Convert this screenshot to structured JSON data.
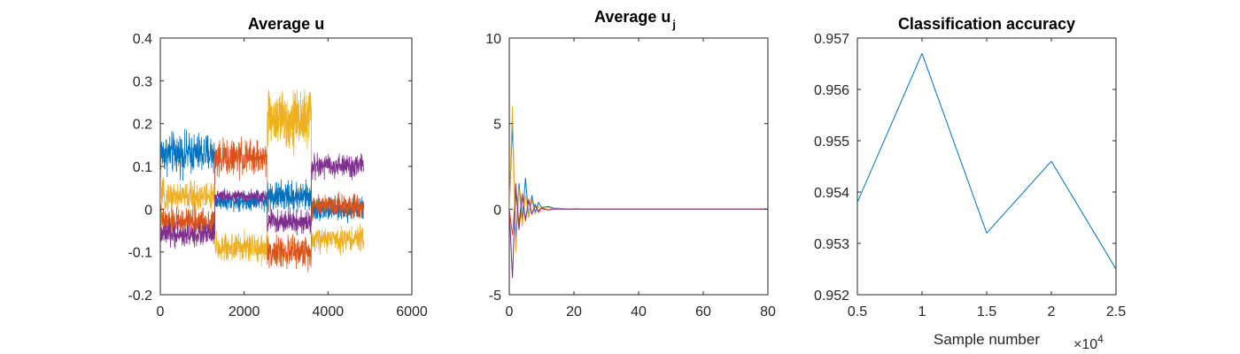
{
  "chart_data": [
    {
      "type": "line",
      "title_main": "Average u",
      "title_sub": "",
      "xlim": [
        0,
        6000
      ],
      "ylim": [
        -0.2,
        0.4
      ],
      "xticks": [
        "0",
        "2000",
        "4000",
        "6000"
      ],
      "yticks": [
        "-0.2",
        "-0.1",
        "0",
        "0.1",
        "0.2",
        "0.3",
        "0.4"
      ],
      "xlabel": "",
      "ylabel": "",
      "grid": false,
      "series": [
        {
          "color": "#0072BD",
          "segments": [
            {
              "x": [
                0,
                1300
              ],
              "mean": 0.13,
              "amp": 0.07
            },
            {
              "x": [
                1300,
                2550
              ],
              "mean": 0.02,
              "amp": 0.03
            },
            {
              "x": [
                2550,
                3600
              ],
              "mean": 0.03,
              "amp": 0.05
            },
            {
              "x": [
                3600,
                4850
              ],
              "mean": 0.0,
              "amp": 0.04
            }
          ]
        },
        {
          "color": "#D95319",
          "segments": [
            {
              "x": [
                0,
                1300
              ],
              "mean": -0.03,
              "amp": 0.05
            },
            {
              "x": [
                1300,
                2550
              ],
              "mean": 0.12,
              "amp": 0.06
            },
            {
              "x": [
                2550,
                3600
              ],
              "mean": -0.1,
              "amp": 0.05
            },
            {
              "x": [
                3600,
                4850
              ],
              "mean": 0.01,
              "amp": 0.04
            }
          ]
        },
        {
          "color": "#EDB120",
          "segments": [
            {
              "x": [
                0,
                1300
              ],
              "mean": 0.03,
              "amp": 0.05
            },
            {
              "x": [
                1300,
                2550
              ],
              "mean": -0.09,
              "amp": 0.05
            },
            {
              "x": [
                2550,
                3600
              ],
              "mean": 0.21,
              "amp": 0.1
            },
            {
              "x": [
                3600,
                4850
              ],
              "mean": -0.07,
              "amp": 0.04
            }
          ]
        },
        {
          "color": "#7E2F8E",
          "segments": [
            {
              "x": [
                0,
                1300
              ],
              "mean": -0.06,
              "amp": 0.04
            },
            {
              "x": [
                1300,
                2550
              ],
              "mean": 0.03,
              "amp": 0.02
            },
            {
              "x": [
                2550,
                3600
              ],
              "mean": -0.03,
              "amp": 0.04
            },
            {
              "x": [
                3600,
                4850
              ],
              "mean": 0.1,
              "amp": 0.04
            }
          ]
        }
      ]
    },
    {
      "type": "line",
      "title_main": "Average u",
      "title_sub": "j",
      "xlim": [
        0,
        80
      ],
      "ylim": [
        -5,
        10
      ],
      "xticks": [
        "0",
        "20",
        "40",
        "60",
        "80"
      ],
      "yticks": [
        "-5",
        "0",
        "5",
        "10"
      ],
      "xlabel": "",
      "ylabel": "",
      "grid": false,
      "series": [
        {
          "color": "#0072BD",
          "x": [
            0,
            1,
            2,
            3,
            4,
            5,
            6,
            7,
            8,
            9,
            10,
            12,
            14,
            16,
            18,
            20,
            25,
            30,
            40,
            60,
            80
          ],
          "y": [
            0,
            5.0,
            -1.8,
            1.5,
            -0.6,
            1.8,
            -0.5,
            0.8,
            -0.2,
            0.4,
            0.1,
            0.15,
            0.05,
            0.05,
            0,
            0.02,
            0,
            0,
            0,
            0,
            0
          ]
        },
        {
          "color": "#D95319",
          "x": [
            0,
            1,
            2,
            3,
            4,
            5,
            6,
            7,
            8,
            9,
            10,
            12,
            14,
            16,
            18,
            20,
            25,
            30,
            40,
            60,
            80
          ],
          "y": [
            0,
            -1.5,
            0.9,
            -0.8,
            0.9,
            -0.7,
            0.6,
            -0.3,
            0.3,
            -0.2,
            0.1,
            -0.05,
            0.05,
            0,
            0,
            0,
            0,
            0,
            0,
            0,
            0
          ]
        },
        {
          "color": "#EDB120",
          "x": [
            0,
            1,
            2,
            3,
            4,
            5,
            6,
            7,
            8,
            9,
            10,
            12,
            14,
            16,
            18,
            20,
            25,
            30,
            40,
            60,
            80
          ],
          "y": [
            0,
            6.0,
            -2.5,
            1.2,
            -1.0,
            0.8,
            -0.5,
            0.5,
            -0.3,
            0.2,
            -0.1,
            0.1,
            0,
            0.05,
            0,
            0,
            0,
            0,
            0,
            0,
            0
          ]
        },
        {
          "color": "#7E2F8E",
          "x": [
            0,
            1,
            2,
            3,
            4,
            5,
            6,
            7,
            8,
            9,
            10,
            12,
            14,
            16,
            18,
            20,
            25,
            30,
            40,
            60,
            80
          ],
          "y": [
            0,
            -4.0,
            1.5,
            -1.2,
            0.8,
            -0.6,
            0.5,
            -0.3,
            0.2,
            -0.1,
            0.05,
            -0.05,
            0,
            0,
            0,
            0,
            0,
            0,
            0,
            0,
            0
          ]
        }
      ]
    },
    {
      "type": "line",
      "title_main": "Classification accuracy",
      "title_sub": "",
      "xlim": [
        0.5,
        2.5
      ],
      "ylim": [
        0.952,
        0.957
      ],
      "xticks": [
        "0.5",
        "1",
        "1.5",
        "2",
        "2.5"
      ],
      "yticks": [
        "0.952",
        "0.953",
        "0.954",
        "0.955",
        "0.956",
        "0.957"
      ],
      "xlabel": "Sample number",
      "x_exponent_base": "×10",
      "x_exponent_power": "4",
      "ylabel": "",
      "grid": false,
      "series": [
        {
          "color": "#0072BD",
          "x": [
            0.5,
            1.0,
            1.5,
            2.0,
            2.5
          ],
          "y": [
            0.9538,
            0.9567,
            0.9532,
            0.9546,
            0.9525
          ]
        }
      ]
    }
  ]
}
